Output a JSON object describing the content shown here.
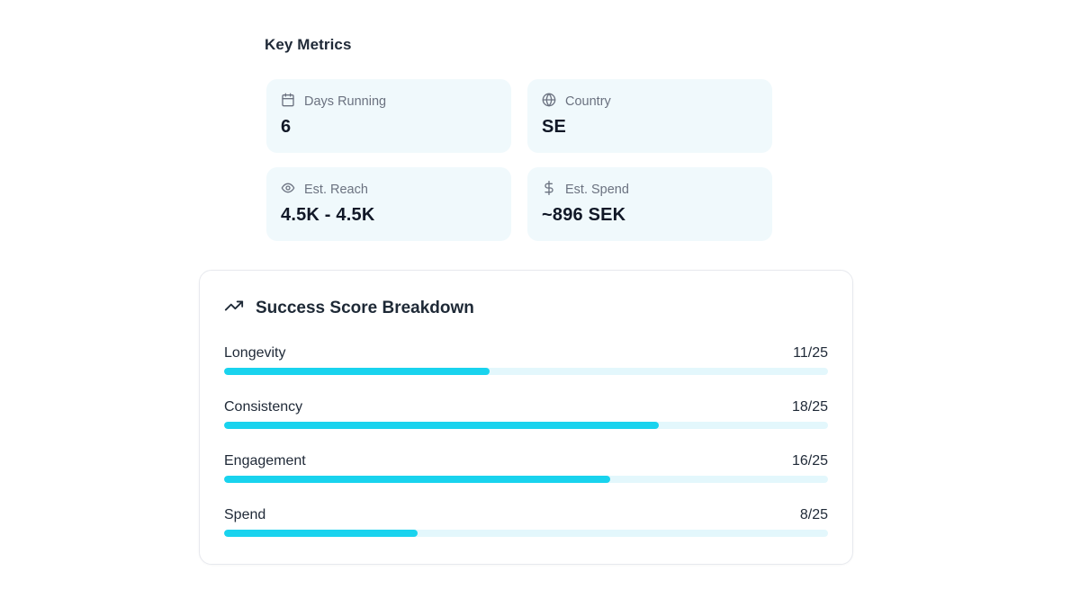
{
  "key_metrics": {
    "title": "Key Metrics",
    "cards": [
      {
        "icon": "calendar-icon",
        "label": "Days Running",
        "value": "6"
      },
      {
        "icon": "globe-icon",
        "label": "Country",
        "value": "SE"
      },
      {
        "icon": "eye-icon",
        "label": "Est. Reach",
        "value": "4.5K - 4.5K"
      },
      {
        "icon": "dollar-icon",
        "label": "Est. Spend",
        "value": "~896 SEK"
      }
    ]
  },
  "breakdown": {
    "icon": "trending-up-icon",
    "title": "Success Score Breakdown",
    "max": 25,
    "rows": [
      {
        "label": "Longevity",
        "score": 11,
        "display": "11/25",
        "percent": 44
      },
      {
        "label": "Consistency",
        "score": 18,
        "display": "18/25",
        "percent": 72
      },
      {
        "label": "Engagement",
        "score": 16,
        "display": "16/25",
        "percent": 64
      },
      {
        "label": "Spend",
        "score": 8,
        "display": "8/25",
        "percent": 32
      }
    ]
  },
  "colors": {
    "bar_fill": "#19d3ee",
    "bar_track": "#e3f7fc",
    "metric_card_bg": "#f0f9fc",
    "label_gray": "#6b7280",
    "text_dark": "#1f2937",
    "card_border": "#e7e9ee",
    "page_bg": "#ffffff"
  }
}
